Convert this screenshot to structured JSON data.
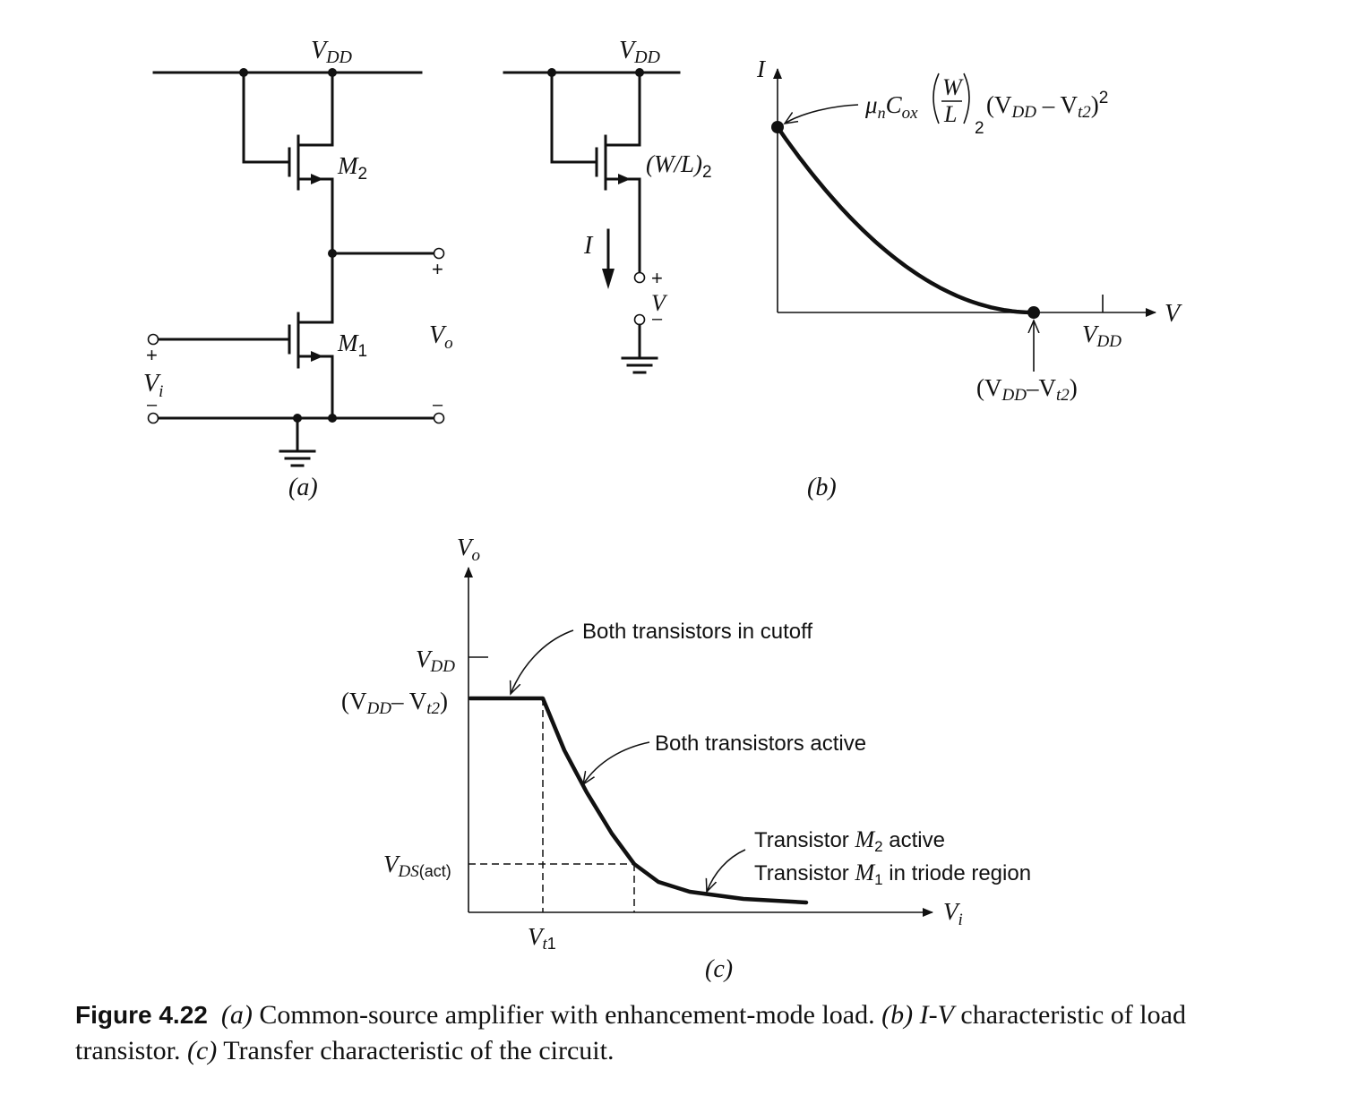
{
  "panel_a": {
    "vdd": {
      "main": "V",
      "sub": "DD"
    },
    "m2": {
      "main": "M",
      "sub": "2"
    },
    "m1": {
      "main": "M",
      "sub": "1"
    },
    "vo": {
      "main": "V",
      "sub": "o"
    },
    "vi": {
      "main": "V",
      "sub": "i"
    },
    "plus": "+",
    "minus": "–",
    "caption_label": "(a)"
  },
  "panel_b_circuit": {
    "vdd": {
      "main": "V",
      "sub": "DD"
    },
    "wl2": {
      "main": "(W/L)",
      "sub": "2"
    },
    "i_label": "I",
    "v_label": "V",
    "plus": "+",
    "minus": "–"
  },
  "panel_b_graph": {
    "y_axis": "I",
    "x_axis": "V",
    "vdd_tick": {
      "main": "V",
      "sub": "DD"
    },
    "formula": {
      "mu": "μ",
      "mu_sub": "n",
      "c": "C",
      "c_sub": "ox",
      "frac_num": "W",
      "frac_den": "L",
      "frac_sub": "2",
      "tail_open": "(V",
      "tail_dd": "DD",
      "tail_mid": " – V",
      "tail_t2": "t2",
      "tail_close": ")",
      "tail_sq": "2"
    },
    "threshold": {
      "open": "(V",
      "dd": "DD",
      "mid": "–V",
      "t2": "t2",
      "close": ")"
    },
    "caption_label": "(b)"
  },
  "panel_c": {
    "y_axis": {
      "main": "V",
      "sub": "o"
    },
    "x_axis": {
      "main": "V",
      "sub": "i"
    },
    "vdd_tick": {
      "main": "V",
      "sub": "DD"
    },
    "vdd_vt2": {
      "open": "(V",
      "dd": "DD",
      "mid": "– V",
      "t2": "t2",
      "close": ")"
    },
    "vds_act": {
      "main": "V",
      "sub_it": "DS",
      "sub_rm": "(act)"
    },
    "vt1": {
      "main": "V",
      "sub_it": "t",
      "sub_rm": "1"
    },
    "ann_cutoff": "Both transistors in cutoff",
    "ann_active": "Both transistors active",
    "ann_m2_pre": "Transistor ",
    "ann_m2_m": "M",
    "ann_m2_sub": "2",
    "ann_m2_post": " active",
    "ann_m1_pre": "Transistor ",
    "ann_m1_m": "M",
    "ann_m1_sub": "1",
    "ann_m1_post": " in triode region",
    "caption_label": "(c)"
  },
  "chart_data": [
    {
      "type": "line",
      "title": "",
      "xlabel": "V",
      "ylabel": "I",
      "x_ticks": [
        "VDD",
        "(VDD – Vt2)"
      ],
      "y_ticks": [
        "μnCox(W/L)2(VDD – Vt2)2"
      ],
      "series": [
        {
          "x": [
            "0",
            "VDD – Vt2"
          ],
          "y": [
            "μnCox(W/L)2(VDD – Vt2)2",
            "0"
          ],
          "shape": "decreasing quadratic"
        }
      ],
      "markers": [
        "0",
        "VDD – Vt2"
      ]
    },
    {
      "type": "line",
      "title": "",
      "xlabel": "Vi",
      "ylabel": "Vo",
      "x_ticks": [
        "Vt1"
      ],
      "y_ticks": [
        "VDD",
        "(VDD – Vt2)",
        "VDS(act)"
      ],
      "series": [
        {
          "segments": [
            "flat at VDD – Vt2 for Vi < Vt1",
            "steep fall after Vt1",
            "tail toward 0 below VDS(act)"
          ]
        }
      ]
    }
  ],
  "caption": {
    "fignum": "Figure 4.22",
    "a_label": "(a)",
    "a_text": " Common-source amplifier with enhancement-mode load. ",
    "b_label": "(b)",
    "b_text_1": " I-V",
    "b_text_2": " characteristic of load transistor. ",
    "c_label": "(c)",
    "c_text": " Transfer characteristic of the circuit."
  },
  "colors": {
    "ink": "#111111",
    "background": "#ffffff"
  }
}
